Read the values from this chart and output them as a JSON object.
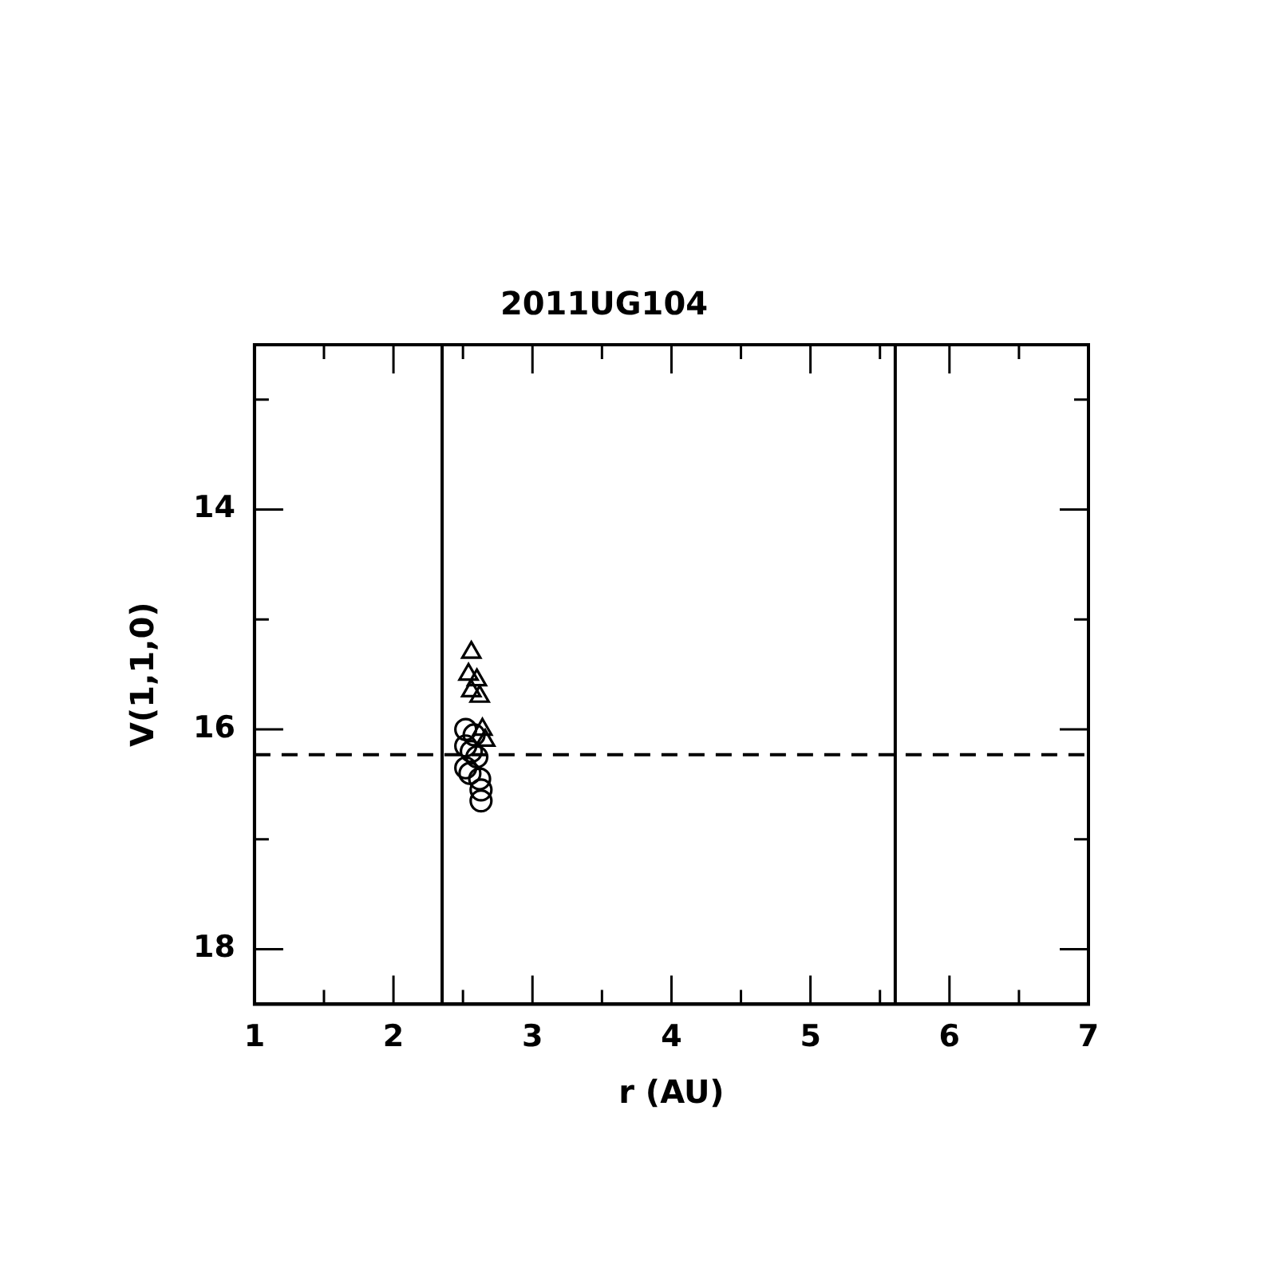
{
  "chart_data": {
    "type": "scatter",
    "title": "2011UG104",
    "xlabel": "r (AU)",
    "ylabel": "V(1,1,0)",
    "xlim": [
      1,
      7
    ],
    "ylim": [
      18.5,
      12.5
    ],
    "xticks": [
      1,
      {
        "value": 1.5,
        "label": null
      },
      2,
      {
        "value": 2.5,
        "label": null
      },
      3,
      {
        "value": 3.5,
        "label": null
      },
      4,
      {
        "value": 4.5,
        "label": null
      },
      5,
      {
        "value": 5.5,
        "label": null
      },
      6,
      {
        "value": 6.5,
        "label": null
      },
      7
    ],
    "yticks": [
      {
        "value": 13,
        "label": null
      },
      14,
      {
        "value": 15,
        "label": null
      },
      16,
      {
        "value": 17,
        "label": null
      },
      18
    ],
    "grid": false,
    "legend": false,
    "series": [
      {
        "color": "#000000",
        "marker": "triangle",
        "x": [
          2.56,
          2.54,
          2.6,
          2.56,
          2.62,
          2.64,
          2.66
        ],
        "values": [
          15.3,
          15.5,
          15.55,
          15.65,
          15.7,
          16.0,
          16.1
        ]
      },
      {
        "color": "#000000",
        "marker": "circle",
        "x": [
          2.52,
          2.58,
          2.52,
          2.56,
          2.6,
          2.52,
          2.55,
          2.62,
          2.63,
          2.63
        ],
        "values": [
          16.0,
          16.05,
          16.15,
          16.2,
          16.25,
          16.35,
          16.4,
          16.45,
          16.55,
          16.65
        ]
      }
    ],
    "ref_lines": [
      {
        "axis": "x",
        "value": 2.35,
        "color": "#000000",
        "line_style": "solid"
      },
      {
        "axis": "x",
        "value": 5.61,
        "color": "#000000",
        "line_style": "solid"
      },
      {
        "axis": "y",
        "value": 16.23,
        "color": "#000000",
        "line_style": "dashed"
      }
    ]
  }
}
